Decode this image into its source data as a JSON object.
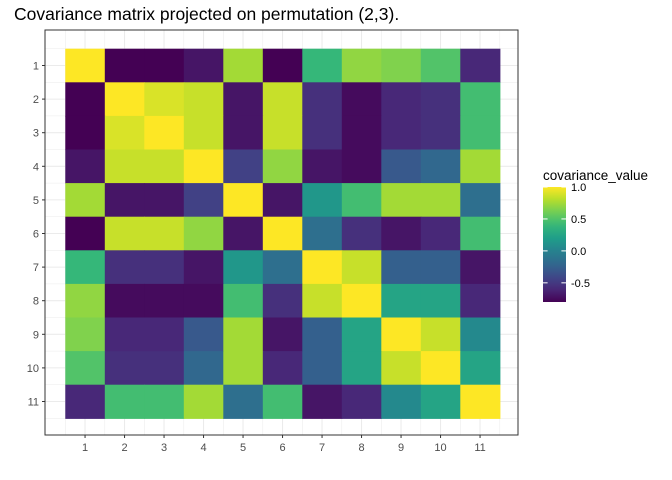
{
  "chart_data": {
    "type": "heatmap",
    "title": "Covariance matrix projected on permutation (2,3).",
    "xlabel": "",
    "ylabel": "",
    "x_categories": [
      "1",
      "2",
      "3",
      "4",
      "5",
      "6",
      "7",
      "8",
      "9",
      "10",
      "11"
    ],
    "y_categories": [
      "1",
      "2",
      "3",
      "4",
      "5",
      "6",
      "7",
      "8",
      "9",
      "10",
      "11"
    ],
    "legend": {
      "title": "covariance_value",
      "range": [
        -0.8,
        1.0
      ],
      "ticks": [
        1.0,
        0.5,
        0.0,
        -0.5
      ],
      "tick_labels": [
        "1.0",
        "0.5",
        "0.0",
        "-0.5"
      ],
      "colormap": [
        "#440154",
        "#482878",
        "#3e4989",
        "#31688e",
        "#26828e",
        "#1f9e89",
        "#35b779",
        "#6ece58",
        "#b5de2b",
        "#fde725"
      ],
      "placement": "right"
    },
    "grid": true,
    "values": [
      [
        1.0,
        -0.8,
        -0.8,
        -0.7,
        0.75,
        -0.8,
        0.4,
        0.7,
        0.65,
        0.5,
        -0.6
      ],
      [
        -0.8,
        1.0,
        0.9,
        0.85,
        -0.7,
        0.85,
        -0.55,
        -0.75,
        -0.6,
        -0.55,
        0.45
      ],
      [
        -0.8,
        0.9,
        1.0,
        0.85,
        -0.7,
        0.85,
        -0.55,
        -0.75,
        -0.6,
        -0.55,
        0.45
      ],
      [
        -0.7,
        0.85,
        0.85,
        1.0,
        -0.45,
        0.7,
        -0.7,
        -0.75,
        -0.3,
        -0.2,
        0.75
      ],
      [
        0.75,
        -0.7,
        -0.7,
        -0.45,
        1.0,
        -0.7,
        0.15,
        0.45,
        0.75,
        0.75,
        -0.15
      ],
      [
        -0.8,
        0.85,
        0.85,
        0.7,
        -0.7,
        1.0,
        -0.15,
        -0.55,
        -0.7,
        -0.6,
        0.45
      ],
      [
        0.4,
        -0.55,
        -0.55,
        -0.7,
        0.15,
        -0.15,
        1.0,
        0.85,
        -0.25,
        -0.25,
        -0.7
      ],
      [
        0.7,
        -0.75,
        -0.75,
        -0.75,
        0.45,
        -0.55,
        0.85,
        1.0,
        0.25,
        0.25,
        -0.6
      ],
      [
        0.65,
        -0.6,
        -0.6,
        -0.3,
        0.75,
        -0.7,
        -0.25,
        0.25,
        1.0,
        0.85,
        0.05
      ],
      [
        0.5,
        -0.55,
        -0.55,
        -0.2,
        0.75,
        -0.6,
        -0.25,
        0.25,
        0.85,
        1.0,
        0.25
      ],
      [
        -0.6,
        0.45,
        0.45,
        0.75,
        -0.15,
        0.45,
        -0.7,
        -0.6,
        0.05,
        0.25,
        1.0
      ]
    ]
  }
}
